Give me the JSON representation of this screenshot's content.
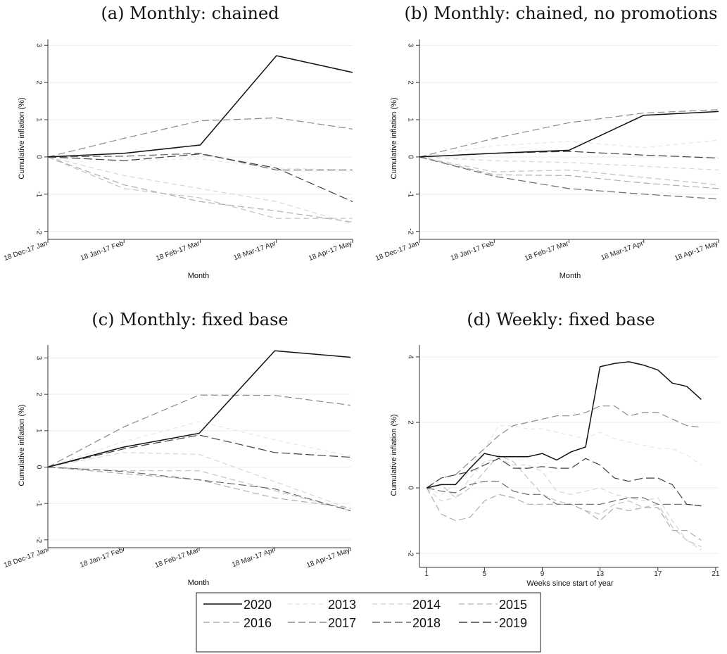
{
  "colors": {
    "2020": "#111111",
    "2013": "#e6e6e6",
    "2014": "#d6d6d6",
    "2015": "#c2c2c2",
    "2016": "#adadad",
    "2017": "#8a8a8a",
    "2018": "#6a6a6a",
    "2019": "#404040",
    "grid": "#ececec"
  },
  "legend": {
    "entries": [
      "2020",
      "2013",
      "2014",
      "2015",
      "2016",
      "2017",
      "2018",
      "2019"
    ]
  },
  "chart_data": [
    {
      "id": "a",
      "type": "line",
      "title": "(a) Monthly: chained",
      "xlabel": "Month",
      "ylabel": "Cumulative inflation (%)",
      "categories": [
        "18 Dec-17 Jan",
        "18 Jan-17 Feb",
        "18 Feb-17 Mar",
        "18 Mar-17 Apr",
        "18 Apr-17 May"
      ],
      "ylim": [
        -2.1,
        3.1
      ],
      "yticks": [
        -2,
        -1,
        0,
        1,
        2,
        3
      ],
      "grid": true,
      "series": [
        {
          "name": "2013",
          "values": [
            0,
            -0.1,
            -0.05,
            -0.3,
            -0.35
          ]
        },
        {
          "name": "2014",
          "values": [
            0,
            -0.5,
            -0.85,
            -1.2,
            -1.8
          ]
        },
        {
          "name": "2015",
          "values": [
            0,
            -0.85,
            -1.1,
            -1.65,
            -1.65
          ]
        },
        {
          "name": "2016",
          "values": [
            0,
            -0.75,
            -1.2,
            -1.45,
            -1.75
          ]
        },
        {
          "name": "2017",
          "values": [
            0,
            0.5,
            0.97,
            1.05,
            0.75
          ]
        },
        {
          "name": "2018",
          "values": [
            0,
            0.02,
            0.1,
            -0.35,
            -0.35
          ]
        },
        {
          "name": "2019",
          "values": [
            0,
            -0.1,
            0.08,
            -0.3,
            -1.2
          ]
        },
        {
          "name": "2020",
          "values": [
            0,
            0.1,
            0.32,
            2.72,
            2.27
          ]
        }
      ]
    },
    {
      "id": "b",
      "type": "line",
      "title": "(b) Monthly: chained, no promotions",
      "xlabel": "Month",
      "ylabel": "Cumulative inflation (%)",
      "categories": [
        "18 Dec-17 Jan",
        "18 Jan-17 Feb",
        "18 Feb-17 Mar",
        "18 Mar-17 Apr",
        "18 Apr-17 May"
      ],
      "ylim": [
        -2.1,
        3.1
      ],
      "yticks": [
        -2,
        -1,
        0,
        1,
        2,
        3
      ],
      "grid": true,
      "series": [
        {
          "name": "2013",
          "values": [
            0,
            0.3,
            0.42,
            0.25,
            0.45
          ]
        },
        {
          "name": "2014",
          "values": [
            0,
            -0.1,
            -0.15,
            -0.25,
            -0.35
          ]
        },
        {
          "name": "2015",
          "values": [
            0,
            -0.4,
            -0.35,
            -0.55,
            -0.75
          ]
        },
        {
          "name": "2016",
          "values": [
            0,
            -0.48,
            -0.5,
            -0.7,
            -0.85
          ]
        },
        {
          "name": "2017",
          "values": [
            0,
            0.5,
            0.92,
            1.18,
            1.27
          ]
        },
        {
          "name": "2018",
          "values": [
            0,
            -0.52,
            -0.85,
            -1.0,
            -1.13
          ]
        },
        {
          "name": "2019",
          "values": [
            0,
            0.1,
            0.15,
            0.05,
            -0.03
          ]
        },
        {
          "name": "2020",
          "values": [
            0,
            0.1,
            0.18,
            1.12,
            1.22
          ]
        }
      ]
    },
    {
      "id": "c",
      "type": "line",
      "title": "(c) Monthly: fixed base",
      "xlabel": "Month",
      "ylabel": "Cumulative inflation (%)",
      "categories": [
        "18 Dec-17 Jan",
        "18 Jan-17 Feb",
        "18 Feb-17 Mar",
        "18 Mar-17 Apr",
        "18 Apr-17 May"
      ],
      "ylim": [
        -2.1,
        3.3
      ],
      "yticks": [
        -2,
        -1,
        0,
        1,
        2,
        3
      ],
      "grid": true,
      "series": [
        {
          "name": "2013",
          "values": [
            0,
            0.7,
            1.25,
            0.75,
            0.3
          ]
        },
        {
          "name": "2014",
          "values": [
            0,
            0.4,
            0.35,
            -0.4,
            -1.15
          ]
        },
        {
          "name": "2015",
          "values": [
            0,
            -0.1,
            -0.1,
            -0.65,
            -1.2
          ]
        },
        {
          "name": "2016",
          "values": [
            0,
            -0.18,
            -0.35,
            -0.85,
            -1.12
          ]
        },
        {
          "name": "2017",
          "values": [
            0,
            1.1,
            1.98,
            1.97,
            1.7
          ]
        },
        {
          "name": "2018",
          "values": [
            0,
            -0.12,
            -0.35,
            -0.6,
            -1.2
          ]
        },
        {
          "name": "2019",
          "values": [
            0,
            0.5,
            0.88,
            0.4,
            0.27
          ]
        },
        {
          "name": "2020",
          "values": [
            0,
            0.55,
            0.93,
            3.2,
            3.02
          ]
        }
      ]
    },
    {
      "id": "d",
      "type": "line",
      "title": "(d) Weekly: fixed base",
      "xlabel": "Weeks since start of year",
      "ylabel": "Cumulative inflation (%)",
      "xlim": [
        0.5,
        21.2
      ],
      "xticks": [
        1,
        5,
        9,
        13,
        17,
        21
      ],
      "ylim": [
        -2.3,
        4.3
      ],
      "yticks": [
        -2,
        0,
        2,
        4
      ],
      "grid": true,
      "x": [
        1,
        2,
        3,
        4,
        5,
        6,
        7,
        8,
        9,
        10,
        11,
        12,
        13,
        14,
        15,
        16,
        17,
        18,
        19,
        20
      ],
      "series": [
        {
          "name": "2013",
          "values": [
            0,
            -0.2,
            0.1,
            0.5,
            1.2,
            1.9,
            1.9,
            1.8,
            1.8,
            1.7,
            1.6,
            1.5,
            1.7,
            1.5,
            1.4,
            1.3,
            1.2,
            1.2,
            1.0,
            0.7
          ]
        },
        {
          "name": "2014",
          "values": [
            0,
            -0.4,
            -0.3,
            0.3,
            0.8,
            0.9,
            0.7,
            0.7,
            0.5,
            -0.1,
            -0.2,
            -0.1,
            0.0,
            -0.2,
            -0.3,
            -0.4,
            -0.3,
            -1.0,
            -1.6,
            -1.9
          ]
        },
        {
          "name": "2015",
          "values": [
            0,
            0.1,
            -0.3,
            0.0,
            0.5,
            1.0,
            0.8,
            0.3,
            -0.2,
            -0.4,
            -0.5,
            -0.7,
            -0.8,
            -0.5,
            -0.4,
            -0.6,
            -0.5,
            -1.2,
            -1.6,
            -1.8
          ]
        },
        {
          "name": "2016",
          "values": [
            0,
            -0.8,
            -1.0,
            -0.9,
            -0.4,
            -0.2,
            -0.3,
            -0.5,
            -0.5,
            -0.5,
            -0.5,
            -0.7,
            -1.0,
            -0.6,
            -0.7,
            -0.6,
            -0.6,
            -1.3,
            -1.3,
            -1.6
          ]
        },
        {
          "name": "2017",
          "values": [
            0,
            0.3,
            0.4,
            0.8,
            1.2,
            1.6,
            1.9,
            2.0,
            2.1,
            2.2,
            2.2,
            2.3,
            2.5,
            2.5,
            2.2,
            2.3,
            2.3,
            2.1,
            1.9,
            1.85
          ]
        },
        {
          "name": "2018",
          "values": [
            0,
            -0.1,
            -0.15,
            0.1,
            0.2,
            0.2,
            -0.1,
            -0.2,
            -0.2,
            -0.5,
            -0.5,
            -0.5,
            -0.5,
            -0.4,
            -0.3,
            -0.3,
            -0.5,
            -0.5,
            -0.5,
            -0.55
          ]
        },
        {
          "name": "2019",
          "values": [
            0,
            0.3,
            0.4,
            0.5,
            0.7,
            0.9,
            0.6,
            0.6,
            0.65,
            0.6,
            0.6,
            0.9,
            0.7,
            0.3,
            0.2,
            0.3,
            0.3,
            0.1,
            -0.5,
            -0.55
          ]
        },
        {
          "name": "2020",
          "values": [
            0,
            0.1,
            0.1,
            0.6,
            1.05,
            0.95,
            0.95,
            0.95,
            1.05,
            0.85,
            1.1,
            1.25,
            3.7,
            3.8,
            3.85,
            3.75,
            3.6,
            3.2,
            3.1,
            2.7
          ]
        }
      ]
    }
  ]
}
